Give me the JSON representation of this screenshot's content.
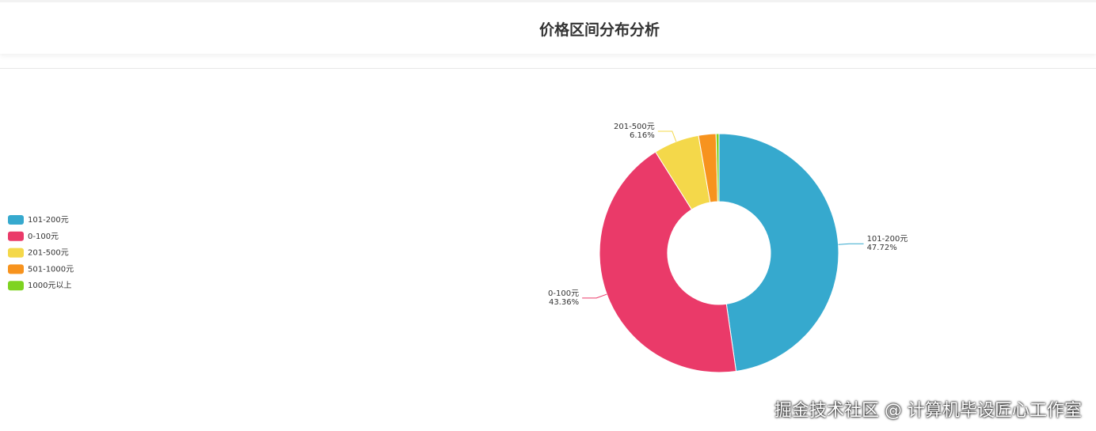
{
  "header": {
    "title": "价格区间分布分析"
  },
  "chart_data": {
    "type": "pie",
    "categories": [
      "101-200元",
      "0-100元",
      "201-500元",
      "501-1000元",
      "1000元以上"
    ],
    "values": [
      47.72,
      43.36,
      6.16,
      2.36,
      0.4
    ],
    "value_labels": [
      "47.72%",
      "43.36%",
      "6.16%",
      null,
      null
    ],
    "colors": [
      "#36a9ce",
      "#ea3a69",
      "#f4d84a",
      "#f7931e",
      "#7ed321"
    ],
    "donut": true,
    "legend": "left"
  },
  "watermark": "掘金技术社区 @ 计算机毕设匠心工作室"
}
